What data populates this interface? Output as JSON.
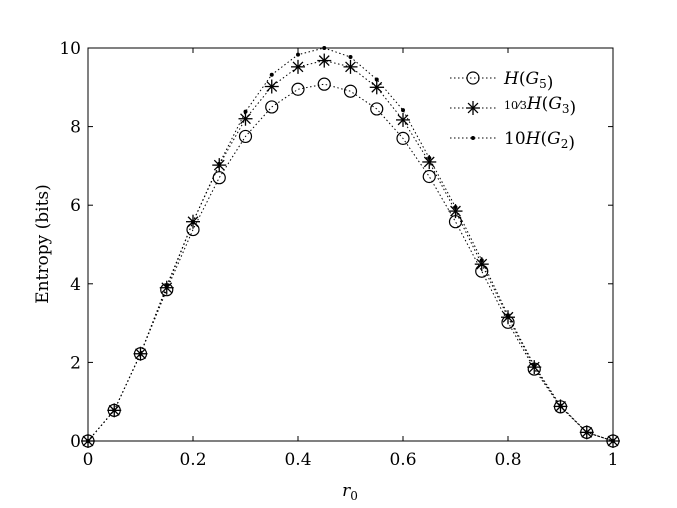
{
  "chart_data": {
    "type": "line",
    "xlabel": "r_0",
    "ylabel": "Entropy (bits)",
    "xlim": [
      0,
      1
    ],
    "ylim": [
      0,
      10
    ],
    "xticks": [
      "0",
      "0.2",
      "0.4",
      "0.6",
      "0.8",
      "1"
    ],
    "yticks": [
      "0",
      "2",
      "4",
      "6",
      "8",
      "10"
    ],
    "grid": false,
    "legend_position": "top-right",
    "x": [
      0,
      0.05,
      0.1,
      0.15,
      0.2,
      0.25,
      0.3,
      0.35,
      0.4,
      0.45,
      0.5,
      0.55,
      0.6,
      0.65,
      0.7,
      0.75,
      0.8,
      0.85,
      0.9,
      0.95,
      1.0
    ],
    "series": [
      {
        "name": "H(G_5)",
        "marker": "circle",
        "values": [
          0,
          0.78,
          2.22,
          3.85,
          5.38,
          6.7,
          7.75,
          8.5,
          8.95,
          9.08,
          8.9,
          8.45,
          7.7,
          6.73,
          5.58,
          4.32,
          3.02,
          1.83,
          0.87,
          0.22,
          0
        ]
      },
      {
        "name": "10/3 H(G_3)",
        "marker": "asterisk",
        "values": [
          0,
          0.78,
          2.22,
          3.9,
          5.58,
          7.02,
          8.2,
          9.02,
          9.52,
          9.68,
          9.52,
          9.0,
          8.17,
          7.1,
          5.85,
          4.5,
          3.15,
          1.88,
          0.88,
          0.22,
          0
        ]
      },
      {
        "name": "10H(G_2)",
        "marker": "dot",
        "values": [
          0,
          0.78,
          2.22,
          3.95,
          5.58,
          7.05,
          8.38,
          9.32,
          9.83,
          10.0,
          9.77,
          9.2,
          8.42,
          7.2,
          5.95,
          4.6,
          3.2,
          1.92,
          0.9,
          0.22,
          0
        ]
      }
    ]
  },
  "legend": [
    {
      "parts": [
        {
          "t": "H",
          "i": true
        },
        {
          "t": "("
        },
        {
          "t": "G",
          "i": true
        },
        {
          "t": "5",
          "sub": true
        },
        {
          "t": ")"
        }
      ]
    },
    {
      "parts": [
        {
          "t": "10/3",
          "frac": true
        },
        {
          "t": "H",
          "i": true
        },
        {
          "t": "("
        },
        {
          "t": "G",
          "i": true
        },
        {
          "t": "3",
          "sub": true
        },
        {
          "t": ")"
        }
      ]
    },
    {
      "parts": [
        {
          "t": "10"
        },
        {
          "t": "H",
          "i": true
        },
        {
          "t": "("
        },
        {
          "t": "G",
          "i": true
        },
        {
          "t": "2",
          "sub": true
        },
        {
          "t": ")"
        }
      ]
    }
  ],
  "colors": {
    "line": "#000000",
    "background": "#ffffff"
  }
}
